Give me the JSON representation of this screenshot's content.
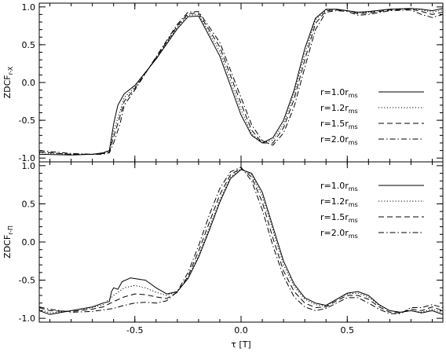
{
  "chart_data": [
    {
      "type": "line",
      "panel": "top",
      "ylabel": "ZDCF",
      "ylabel_sub": "r-X",
      "xlim": [
        -0.95,
        0.95
      ],
      "ylim": [
        -1.05,
        1.05
      ],
      "xticks": [
        -0.5,
        0.0,
        0.5
      ],
      "yticks": [
        -1.0,
        -0.5,
        0.0,
        0.5,
        1.0
      ],
      "ytick_labels": [
        "-1.0",
        "-0.5",
        "0.0",
        "0.5",
        "1.0"
      ],
      "grid": false,
      "legend_position": "right",
      "series": [
        {
          "name": "r=1.0r",
          "name_sub": "ms",
          "dash": "solid",
          "x": [
            -0.95,
            -0.8,
            -0.7,
            -0.65,
            -0.62,
            -0.6,
            -0.58,
            -0.55,
            -0.5,
            -0.4,
            -0.3,
            -0.25,
            -0.2,
            -0.1,
            0.0,
            0.05,
            0.1,
            0.15,
            0.2,
            0.25,
            0.3,
            0.35,
            0.4,
            0.45,
            0.5,
            0.55,
            0.6,
            0.7,
            0.8,
            0.85,
            0.9,
            0.95
          ],
          "y": [
            -0.95,
            -0.96,
            -0.95,
            -0.93,
            -0.9,
            -0.55,
            -0.3,
            -0.15,
            -0.04,
            0.31,
            0.71,
            0.87,
            0.88,
            0.35,
            -0.43,
            -0.7,
            -0.8,
            -0.73,
            -0.5,
            -0.1,
            0.45,
            0.85,
            0.97,
            0.97,
            0.95,
            0.93,
            0.94,
            0.97,
            0.98,
            0.97,
            0.95,
            0.98
          ]
        },
        {
          "name": "r=1.2r",
          "name_sub": "ms",
          "dash": "dotted",
          "x": [
            -0.95,
            -0.8,
            -0.7,
            -0.65,
            -0.62,
            -0.6,
            -0.57,
            -0.55,
            -0.5,
            -0.4,
            -0.3,
            -0.25,
            -0.2,
            -0.1,
            0.0,
            0.05,
            0.1,
            0.15,
            0.2,
            0.25,
            0.3,
            0.35,
            0.4,
            0.45,
            0.5,
            0.55,
            0.6,
            0.7,
            0.8,
            0.85,
            0.9,
            0.95
          ],
          "y": [
            -0.93,
            -0.95,
            -0.95,
            -0.93,
            -0.91,
            -0.65,
            -0.38,
            -0.2,
            -0.06,
            0.32,
            0.73,
            0.89,
            0.9,
            0.41,
            -0.36,
            -0.68,
            -0.8,
            -0.76,
            -0.55,
            -0.15,
            0.38,
            0.83,
            0.96,
            0.97,
            0.95,
            0.92,
            0.93,
            0.97,
            0.98,
            0.96,
            0.93,
            0.96
          ]
        },
        {
          "name": "r=1.5r",
          "name_sub": "ms",
          "dash": "dashed",
          "x": [
            -0.95,
            -0.8,
            -0.7,
            -0.65,
            -0.62,
            -0.6,
            -0.57,
            -0.55,
            -0.5,
            -0.4,
            -0.3,
            -0.25,
            -0.2,
            -0.1,
            0.0,
            0.05,
            0.1,
            0.15,
            0.2,
            0.25,
            0.3,
            0.35,
            0.4,
            0.45,
            0.5,
            0.55,
            0.6,
            0.7,
            0.8,
            0.85,
            0.9,
            0.95
          ],
          "y": [
            -0.92,
            -0.95,
            -0.95,
            -0.94,
            -0.92,
            -0.72,
            -0.45,
            -0.25,
            -0.08,
            0.33,
            0.75,
            0.91,
            0.92,
            0.47,
            -0.28,
            -0.63,
            -0.8,
            -0.8,
            -0.6,
            -0.22,
            0.3,
            0.78,
            0.95,
            0.96,
            0.95,
            0.91,
            0.92,
            0.96,
            0.97,
            0.94,
            0.9,
            0.93
          ]
        },
        {
          "name": "r=2.0r",
          "name_sub": "ms",
          "dash": "dashdot",
          "x": [
            -0.95,
            -0.8,
            -0.7,
            -0.65,
            -0.62,
            -0.6,
            -0.57,
            -0.55,
            -0.5,
            -0.4,
            -0.3,
            -0.25,
            -0.2,
            -0.1,
            0.0,
            0.05,
            0.1,
            0.15,
            0.2,
            0.25,
            0.3,
            0.35,
            0.4,
            0.45,
            0.5,
            0.55,
            0.6,
            0.7,
            0.8,
            0.85,
            0.9,
            0.95
          ],
          "y": [
            -0.9,
            -0.94,
            -0.95,
            -0.95,
            -0.93,
            -0.8,
            -0.55,
            -0.3,
            -0.1,
            0.34,
            0.77,
            0.93,
            0.94,
            0.53,
            -0.2,
            -0.56,
            -0.77,
            -0.83,
            -0.67,
            -0.32,
            0.2,
            0.7,
            0.93,
            0.95,
            0.94,
            0.89,
            0.9,
            0.95,
            0.96,
            0.9,
            0.86,
            0.9
          ]
        }
      ]
    },
    {
      "type": "line",
      "panel": "bottom",
      "xlabel": "τ [T]",
      "ylabel": "ZDCF",
      "ylabel_sub": "r-Π",
      "xlim": [
        -0.95,
        0.95
      ],
      "ylim": [
        -1.05,
        1.05
      ],
      "xticks": [
        -0.5,
        0.0,
        0.5
      ],
      "xtick_labels": [
        "-0.5",
        "0.0",
        "0.5"
      ],
      "yticks": [
        -1.0,
        -0.5,
        0.0,
        0.5,
        1.0
      ],
      "ytick_labels": [
        "-1.0",
        "-0.5",
        "0.0",
        "0.5",
        "1.0"
      ],
      "grid": false,
      "legend_position": "top-right",
      "series": [
        {
          "name": "r=1.0r",
          "name_sub": "ms",
          "dash": "solid",
          "x": [
            -0.95,
            -0.9,
            -0.8,
            -0.7,
            -0.65,
            -0.62,
            -0.61,
            -0.6,
            -0.58,
            -0.56,
            -0.52,
            -0.45,
            -0.4,
            -0.35,
            -0.3,
            -0.25,
            -0.2,
            -0.15,
            -0.1,
            -0.05,
            0.0,
            0.05,
            0.1,
            0.15,
            0.2,
            0.25,
            0.3,
            0.35,
            0.4,
            0.45,
            0.5,
            0.55,
            0.6,
            0.65,
            0.7,
            0.75,
            0.8,
            0.85,
            0.9,
            0.95
          ],
          "y": [
            -0.9,
            -0.95,
            -0.9,
            -0.85,
            -0.8,
            -0.78,
            -0.65,
            -0.6,
            -0.62,
            -0.52,
            -0.47,
            -0.5,
            -0.6,
            -0.68,
            -0.65,
            -0.48,
            -0.2,
            0.15,
            0.52,
            0.83,
            0.95,
            0.9,
            0.65,
            0.2,
            -0.25,
            -0.55,
            -0.73,
            -0.8,
            -0.83,
            -0.75,
            -0.67,
            -0.65,
            -0.7,
            -0.82,
            -0.9,
            -0.92,
            -0.9,
            -0.93,
            -0.9,
            -0.95
          ]
        },
        {
          "name": "r=1.2r",
          "name_sub": "ms",
          "dash": "dotted",
          "x": [
            -0.95,
            -0.9,
            -0.8,
            -0.7,
            -0.65,
            -0.6,
            -0.55,
            -0.5,
            -0.45,
            -0.4,
            -0.35,
            -0.3,
            -0.25,
            -0.2,
            -0.15,
            -0.1,
            -0.05,
            0.0,
            0.05,
            0.1,
            0.15,
            0.2,
            0.25,
            0.3,
            0.35,
            0.4,
            0.45,
            0.5,
            0.55,
            0.6,
            0.65,
            0.7,
            0.75,
            0.8,
            0.85,
            0.9,
            0.95
          ],
          "y": [
            -0.88,
            -0.93,
            -0.9,
            -0.86,
            -0.82,
            -0.7,
            -0.6,
            -0.57,
            -0.6,
            -0.66,
            -0.7,
            -0.65,
            -0.47,
            -0.18,
            0.18,
            0.55,
            0.85,
            0.96,
            0.88,
            0.6,
            0.15,
            -0.3,
            -0.58,
            -0.75,
            -0.82,
            -0.84,
            -0.75,
            -0.68,
            -0.67,
            -0.72,
            -0.83,
            -0.9,
            -0.92,
            -0.9,
            -0.92,
            -0.88,
            -0.93
          ]
        },
        {
          "name": "r=1.5r",
          "name_sub": "ms",
          "dash": "dashed",
          "x": [
            -0.95,
            -0.9,
            -0.8,
            -0.7,
            -0.65,
            -0.6,
            -0.55,
            -0.5,
            -0.45,
            -0.4,
            -0.35,
            -0.3,
            -0.25,
            -0.2,
            -0.15,
            -0.1,
            -0.05,
            0.0,
            0.05,
            0.1,
            0.15,
            0.2,
            0.25,
            0.3,
            0.35,
            0.4,
            0.45,
            0.5,
            0.55,
            0.6,
            0.65,
            0.7,
            0.75,
            0.8,
            0.85,
            0.9,
            0.95
          ],
          "y": [
            -0.86,
            -0.9,
            -0.91,
            -0.88,
            -0.85,
            -0.78,
            -0.72,
            -0.68,
            -0.69,
            -0.72,
            -0.74,
            -0.66,
            -0.45,
            -0.12,
            0.25,
            0.62,
            0.88,
            0.97,
            0.85,
            0.52,
            0.05,
            -0.38,
            -0.65,
            -0.8,
            -0.86,
            -0.85,
            -0.77,
            -0.7,
            -0.7,
            -0.75,
            -0.85,
            -0.92,
            -0.93,
            -0.88,
            -0.9,
            -0.85,
            -0.9
          ]
        },
        {
          "name": "r=2.0r",
          "name_sub": "ms",
          "dash": "dashdot",
          "x": [
            -0.95,
            -0.9,
            -0.8,
            -0.7,
            -0.65,
            -0.6,
            -0.55,
            -0.5,
            -0.45,
            -0.4,
            -0.35,
            -0.3,
            -0.25,
            -0.2,
            -0.15,
            -0.1,
            -0.05,
            0.0,
            0.05,
            0.1,
            0.15,
            0.2,
            0.25,
            0.3,
            0.35,
            0.4,
            0.45,
            0.5,
            0.55,
            0.6,
            0.65,
            0.7,
            0.75,
            0.8,
            0.85,
            0.9,
            0.95
          ],
          "y": [
            -0.85,
            -0.88,
            -0.92,
            -0.91,
            -0.89,
            -0.87,
            -0.83,
            -0.8,
            -0.79,
            -0.8,
            -0.77,
            -0.65,
            -0.4,
            -0.05,
            0.35,
            0.7,
            0.92,
            0.98,
            0.8,
            0.42,
            -0.05,
            -0.45,
            -0.72,
            -0.85,
            -0.9,
            -0.87,
            -0.8,
            -0.73,
            -0.73,
            -0.8,
            -0.88,
            -0.94,
            -0.94,
            -0.86,
            -0.86,
            -0.82,
            -0.86
          ]
        }
      ]
    }
  ]
}
